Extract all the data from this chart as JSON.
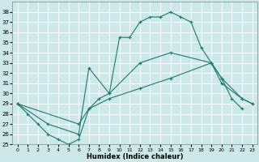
{
  "xlabel": "Humidex (Indice chaleur)",
  "bg_color": "#cce8e8",
  "line_color": "#1a7a6e",
  "grid_color": "#ffffff",
  "xlim": [
    -0.5,
    23.5
  ],
  "ylim": [
    25,
    39
  ],
  "yticks": [
    25,
    26,
    27,
    28,
    29,
    30,
    31,
    32,
    33,
    34,
    35,
    36,
    37,
    38
  ],
  "xticks": [
    0,
    1,
    2,
    3,
    4,
    5,
    6,
    7,
    8,
    9,
    10,
    11,
    12,
    13,
    14,
    15,
    16,
    17,
    18,
    19,
    20,
    21,
    22,
    23
  ],
  "line1_x": [
    0,
    1,
    2,
    3,
    4,
    5,
    6,
    7,
    8,
    9,
    10,
    11,
    12,
    13,
    14,
    15,
    16,
    17,
    18,
    19,
    20,
    21,
    22
  ],
  "line1_y": [
    29,
    28,
    27,
    26,
    25.5,
    25,
    25.5,
    28.5,
    29.5,
    30,
    35.5,
    35.5,
    37,
    37.5,
    37.5,
    38,
    37.5,
    37,
    34.5,
    33,
    31.5,
    29.5,
    28.5
  ],
  "line2_x": [
    0,
    3,
    6,
    7,
    9,
    12,
    15,
    19,
    20,
    22,
    23
  ],
  "line2_y": [
    29,
    27,
    26,
    32.5,
    30,
    33,
    34,
    33,
    31.5,
    29.5,
    29
  ],
  "line3_x": [
    0,
    6,
    7,
    9,
    12,
    15,
    19,
    20,
    22,
    23
  ],
  "line3_y": [
    29,
    27,
    28.5,
    29.5,
    30.5,
    31.5,
    33,
    31,
    29.5,
    29
  ]
}
